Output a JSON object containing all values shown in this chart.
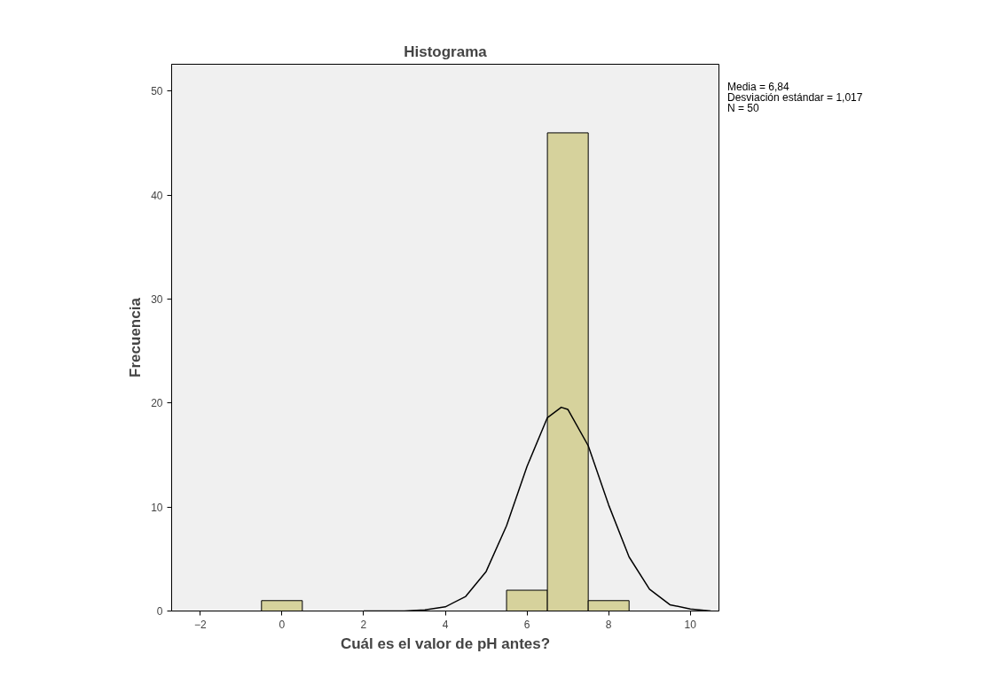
{
  "chart_data": {
    "type": "histogram",
    "title": "Histograma",
    "xlabel": "Cuál es el valor de pH antes?",
    "ylabel": "Frecuencia",
    "bins": [
      -0.5,
      0.5,
      1.5,
      2.5,
      3.5,
      4.5,
      5.5,
      6.5,
      7.5,
      8.5
    ],
    "values": [
      1,
      0,
      0,
      0,
      0,
      0,
      2,
      46,
      1
    ],
    "color": "#d6d29c",
    "series": [
      {
        "type": "line",
        "color": "#000000",
        "x": [
          2,
          2.5,
          3,
          3.5,
          4,
          4.5,
          5,
          5.5,
          6,
          6.5,
          6.84,
          7,
          7.5,
          8,
          8.5,
          9,
          9.5,
          10,
          10.5
        ],
        "values": [
          0,
          0,
          0,
          0.1,
          0.4,
          1.4,
          3.8,
          8.2,
          13.9,
          18.6,
          19.6,
          19.4,
          15.9,
          10.2,
          5.2,
          2.1,
          0.6,
          0.2,
          0
        ]
      }
    ],
    "xlim": [
      -2.7,
      10.7
    ],
    "ylim": [
      0,
      52.6
    ],
    "xticks": [
      -2,
      0,
      2,
      4,
      6,
      8,
      10
    ],
    "yticks": [
      0,
      10,
      20,
      30,
      40,
      50
    ],
    "grid": false,
    "annotations": [
      "Media = 6,84",
      "Desviación estándar = 1,017",
      "N = 50"
    ]
  }
}
